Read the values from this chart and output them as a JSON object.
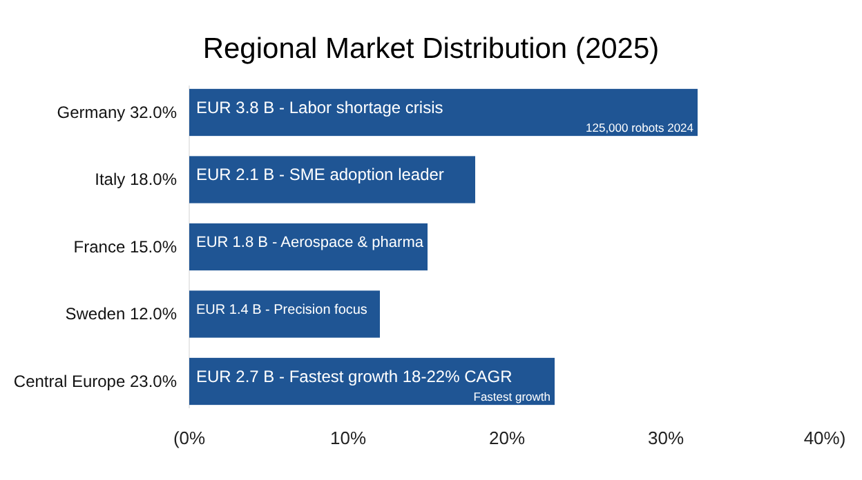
{
  "chart_data": {
    "type": "bar",
    "orientation": "horizontal",
    "title": "Regional Market Distribution (2025)",
    "categories": [
      "Germany 32.0%",
      "Italy 18.0%",
      "France 15.0%",
      "Sweden 12.0%",
      "Central Europe 23.0%"
    ],
    "values": [
      32,
      18,
      15,
      12,
      23
    ],
    "color": "#1f5594",
    "xlim": [
      0,
      40
    ],
    "xticks": [
      {
        "value": 0,
        "label": "(0%"
      },
      {
        "value": 10,
        "label": "10%"
      },
      {
        "value": 20,
        "label": "20%"
      },
      {
        "value": 30,
        "label": "30%"
      },
      {
        "value": 40,
        "label": "40%)"
      }
    ],
    "annotations": [
      {
        "text": "EUR 3.8 B - Labor shortage crisis",
        "x": 0,
        "y": "Germany 32.0%"
      },
      {
        "text": "EUR 2.1 B - SME adoption leader",
        "x": 0,
        "y": "Italy 18.0%"
      },
      {
        "text": "EUR 1.8 B - Aerospace & pharma",
        "x": 0,
        "y": "France 15.0%"
      },
      {
        "text": "EUR 1.4 B - Precision focus",
        "x": 0,
        "y": "Sweden 12.0%"
      },
      {
        "text": "EUR 2.7 B - Fastest growth 18-22% CAGR",
        "x": 0,
        "y": "Central Europe 23.0%"
      },
      {
        "text": "125,000 robots 2024",
        "x": 32,
        "y": "Germany 32.0%"
      },
      {
        "text": "Fastest growth",
        "x": 23,
        "y": "Central Europe 23.0%"
      }
    ],
    "grid": false
  }
}
